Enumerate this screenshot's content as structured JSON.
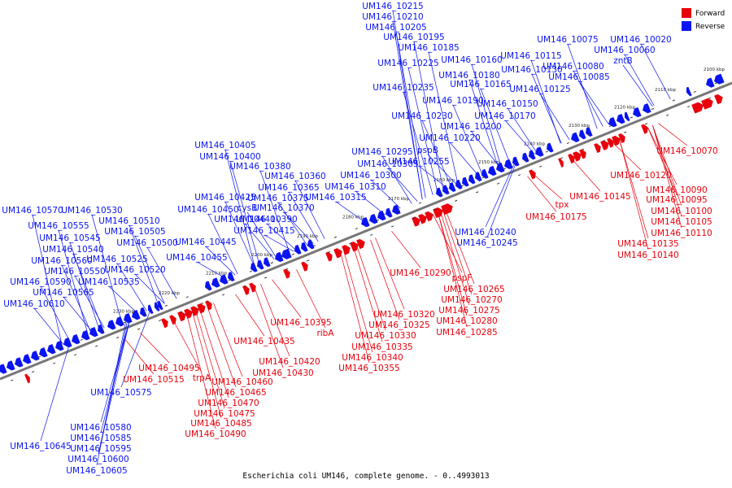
{
  "colors": {
    "forward": "#e8000b",
    "reverse": "#0a14f0",
    "axis": "#777777"
  },
  "legend": [
    {
      "label": "Forward",
      "color": "#e8000b"
    },
    {
      "label": "Reverse",
      "color": "#0a14f0"
    }
  ],
  "caption": "Escherichia coli UM146, complete genome. - 0..4993013",
  "axis": {
    "ticks": [
      "2100 kbp",
      "2110 kbp",
      "2120 kbp",
      "2130 kbp",
      "2140 kbp",
      "2150 kbp",
      "2160 kbp",
      "2170 kbp",
      "2180 kbp",
      "2190 kbp",
      "2200 kbp",
      "2210 kbp",
      "2220 kbp",
      "2230 kbp"
    ]
  },
  "features": {
    "reverse": [
      "UM146_10215",
      "UM146_10210",
      "UM146_10205",
      "UM146_10195",
      "UM146_10185",
      "UM146_10075",
      "UM146_10020",
      "UM146_10060",
      "zntB",
      "UM146_10160",
      "UM146_10225",
      "UM146_10130",
      "UM146_10080",
      "UM146_10180",
      "UM146_10085",
      "UM146_10115",
      "UM146_10165",
      "UM146_10235",
      "UM146_10125",
      "UM146_10190",
      "UM146_10150",
      "UM146_10230",
      "UM146_10170",
      "UM146_10200",
      "UM146_10220",
      "UM146_10295",
      "pspB",
      "UM146_10305",
      "UM146_10255",
      "UM146_10405",
      "UM146_10400",
      "UM146_10380",
      "UM146_10360",
      "UM146_10300",
      "UM146_10365",
      "UM146_10310",
      "UM146_10425",
      "UM146_10375",
      "UM146_10315",
      "cysB",
      "UM146_10370",
      "UM146_10450",
      "UM146_10440",
      "UM146_10390",
      "UM146_10415",
      "UM146_10570",
      "UM146_10530",
      "UM146_10510",
      "UM146_10555",
      "UM146_10505",
      "UM146_10545",
      "UM146_10500",
      "UM146_10445",
      "UM146_10540",
      "UM146_10525",
      "UM146_10455",
      "UM146_10560",
      "UM146_10520",
      "UM146_10550",
      "UM146_10590",
      "UM146_10535",
      "UM146_10565",
      "UM146_10610",
      "UM146_10240",
      "UM146_10245",
      "UM146_10575",
      "UM146_10580",
      "UM146_10585",
      "UM146_10595",
      "UM146_10645",
      "UM146_10600",
      "UM146_10605"
    ],
    "forward": [
      "UM146_10070",
      "UM146_10120",
      "UM146_10090",
      "UM146_10095",
      "UM146_10145",
      "tpx",
      "UM146_10100",
      "UM146_10175",
      "UM146_10105",
      "UM146_10110",
      "UM146_10135",
      "UM146_10140",
      "UM146_10290",
      "pspF",
      "UM146_10265",
      "UM146_10270",
      "UM146_10275",
      "UM146_10280",
      "UM146_10285",
      "UM146_10320",
      "UM146_10325",
      "UM146_10330",
      "UM146_10335",
      "UM146_10340",
      "UM146_10355",
      "UM146_10395",
      "ribA",
      "UM146_10435",
      "UM146_10420",
      "UM146_10430",
      "UM146_10495",
      "UM146_10515",
      "trpA",
      "UM146_10460",
      "UM146_10465",
      "UM146_10470",
      "UM146_10475",
      "UM146_10485",
      "UM146_10490"
    ]
  }
}
